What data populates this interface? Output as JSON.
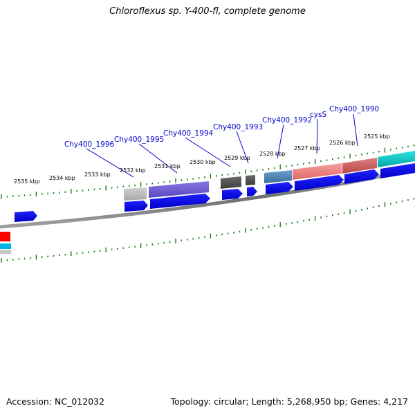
{
  "title": "Chloroflexus sp. Y-400-fl, complete genome",
  "footer": {
    "accession": "Accession: NC_012032",
    "summary": "Topology: circular; Length: 5,268,950 bp; Genes: 4,217"
  },
  "scale_ticks": [
    "2535 kbp",
    "2534 kbp",
    "2533 kbp",
    "2532 kbp",
    "2531 kbp",
    "2530 kbp",
    "2529 kbp",
    "2528 kbp",
    "2527 kbp",
    "2526 kbp",
    "2525 kbp"
  ],
  "gene_labels": [
    "Chy400_1996",
    "Chy400_1995",
    "Chy400_1994",
    "Chy400_1993",
    "Chy400_1992",
    "cysS",
    "Chy400_1990"
  ],
  "colors": {
    "backbone": "#808080",
    "cds_arrow": "#0000ee",
    "label": "#0000cc",
    "tick": "#1a7a1a",
    "feature_grey_light": "#b4b4b4",
    "feature_purple": "#6a5acd",
    "feature_dark": "#555555",
    "feature_steelblue": "#4682b4",
    "feature_salmon": "#f08080",
    "feature_indianred": "#cd5c5c",
    "feature_cyan": "#00c8c8",
    "feature_red": "#ff0000"
  }
}
